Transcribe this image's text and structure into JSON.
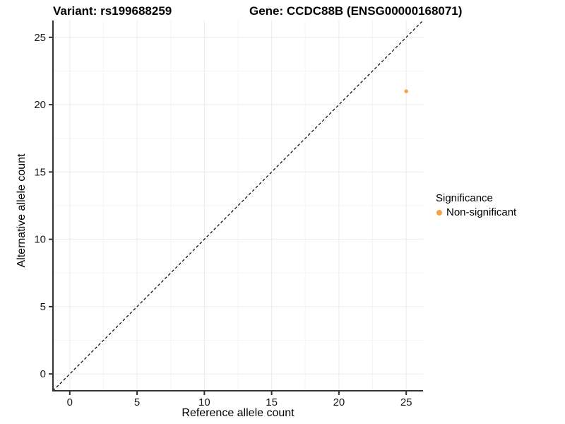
{
  "header": {
    "title_left": "Variant: rs199688259",
    "title_right": "Gene: CCDC88B (ENSG00000168071)"
  },
  "axes": {
    "x_label": "Reference allele count",
    "y_label": "Alternative allele count"
  },
  "legend": {
    "title": "Significance",
    "items": [
      {
        "label": "Non-significant",
        "color": "#F9A242"
      }
    ]
  },
  "colors": {
    "point": "#F9A242",
    "grid_major": "#EBEBEB",
    "grid_minor": "#F5F5F5",
    "axis_line": "#333333",
    "tick_label": "#1A1A1A",
    "diagonal": "#000000"
  },
  "chart_data": {
    "type": "scatter",
    "title": "Variant: rs199688259 — Gene: CCDC88B (ENSG00000168071)",
    "xlabel": "Reference allele count",
    "ylabel": "Alternative allele count",
    "xlim": [
      -1.25,
      26.25
    ],
    "ylim": [
      -1.25,
      26.25
    ],
    "x_ticks": [
      0,
      5,
      10,
      15,
      20,
      25
    ],
    "y_ticks": [
      0,
      5,
      10,
      15,
      20,
      25
    ],
    "x_minor_ticks": [
      2.5,
      7.5,
      12.5,
      17.5,
      22.5
    ],
    "y_minor_ticks": [
      2.5,
      7.5,
      12.5,
      17.5,
      22.5
    ],
    "grid": true,
    "legend_position": "right",
    "reference_line": {
      "type": "identity",
      "equation": "y = x",
      "style": "dashed",
      "color": "#000000"
    },
    "series": [
      {
        "name": "Non-significant",
        "color": "#F9A242",
        "points": [
          {
            "x": 25,
            "y": 21
          }
        ]
      }
    ]
  }
}
